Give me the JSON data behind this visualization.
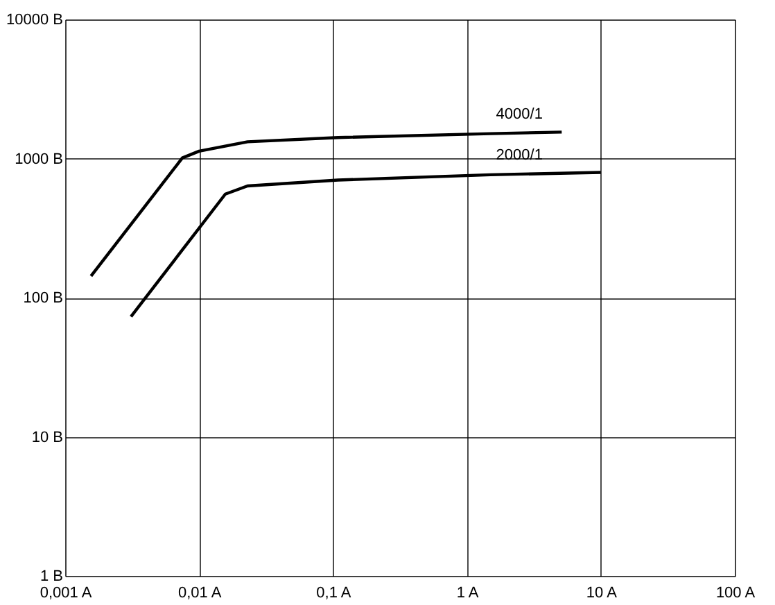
{
  "chart_data": {
    "type": "line",
    "log": "xy",
    "grid": true,
    "marker": "none",
    "line_style": "solid",
    "xlim": [
      0.001,
      100
    ],
    "ylim": [
      1,
      10000
    ],
    "xticks": [
      {
        "value": 0.001,
        "label": "0,001 A"
      },
      {
        "value": 0.01,
        "label": "0,01 A"
      },
      {
        "value": 0.1,
        "label": "0,1 A"
      },
      {
        "value": 1,
        "label": "1 A"
      },
      {
        "value": 10,
        "label": "10 A"
      },
      {
        "value": 100,
        "label": "100 A"
      }
    ],
    "yticks": [
      {
        "value": 1,
        "label": "1 B"
      },
      {
        "value": 10,
        "label": "10 B"
      },
      {
        "value": 100,
        "label": "100 B"
      },
      {
        "value": 1000,
        "label": "1000 B"
      },
      {
        "value": 10000,
        "label": "10000 B"
      }
    ],
    "series": [
      {
        "name": "4000/1",
        "color": "#000000",
        "x": [
          0.00156,
          0.0075,
          0.01,
          0.023,
          0.109,
          1.5,
          5.1
        ],
        "values": [
          143,
          1010,
          1130,
          1320,
          1416,
          1510,
          1550
        ]
      },
      {
        "name": "2000/1",
        "color": "#000000",
        "x": [
          0.0031,
          0.0157,
          0.023,
          0.109,
          1.5,
          10
        ],
        "values": [
          73,
          555,
          635,
          700,
          765,
          795
        ]
      }
    ]
  }
}
